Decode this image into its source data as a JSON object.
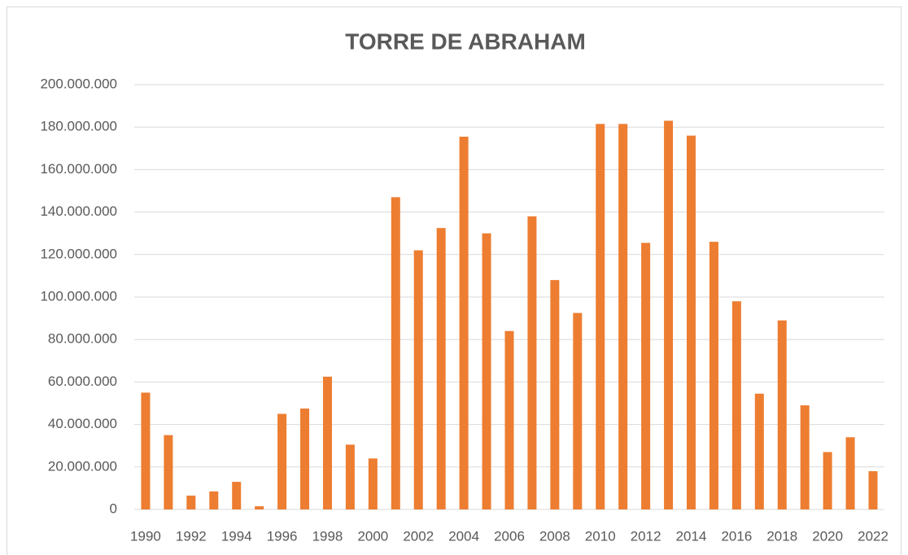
{
  "chart_data": {
    "type": "bar",
    "title": "TORRE DE ABRAHAM",
    "categories": [
      "1990",
      null,
      "1992",
      null,
      "1994",
      null,
      "1996",
      null,
      "1998",
      null,
      "2000",
      null,
      "2002",
      null,
      "2004",
      null,
      "2006",
      null,
      "2008",
      null,
      "2010",
      null,
      "2012",
      null,
      "2014",
      null,
      "2016",
      null,
      "2018",
      null,
      "2020",
      null,
      "2022"
    ],
    "values": [
      55000000,
      35000000,
      6500000,
      8500000,
      13000000,
      1500000,
      45000000,
      47500000,
      62500000,
      30500000,
      24000000,
      147000000,
      122000000,
      132500000,
      175500000,
      130000000,
      84000000,
      138000000,
      108000000,
      92500000,
      181500000,
      181500000,
      125500000,
      183000000,
      176000000,
      126000000,
      98000000,
      54500000,
      89000000,
      49000000,
      27000000,
      34000000,
      18000000
    ],
    "color": "#ed7d31",
    "ylim": [
      0,
      200000000
    ],
    "yticks": [
      0,
      {
        "value": 20000000,
        "label": "20.000.000"
      },
      {
        "value": 40000000,
        "label": "40.000.000"
      },
      {
        "value": 60000000,
        "label": "60.000.000"
      },
      {
        "value": 80000000,
        "label": "80.000.000"
      },
      {
        "value": 100000000,
        "label": "100.000.000"
      },
      {
        "value": 120000000,
        "label": "120.000.000"
      },
      {
        "value": 140000000,
        "label": "140.000.000"
      },
      {
        "value": 160000000,
        "label": "160.000.000"
      },
      {
        "value": 180000000,
        "label": "180.000.000"
      },
      {
        "value": 200000000,
        "label": "200.000.000"
      }
    ],
    "grid": true
  }
}
